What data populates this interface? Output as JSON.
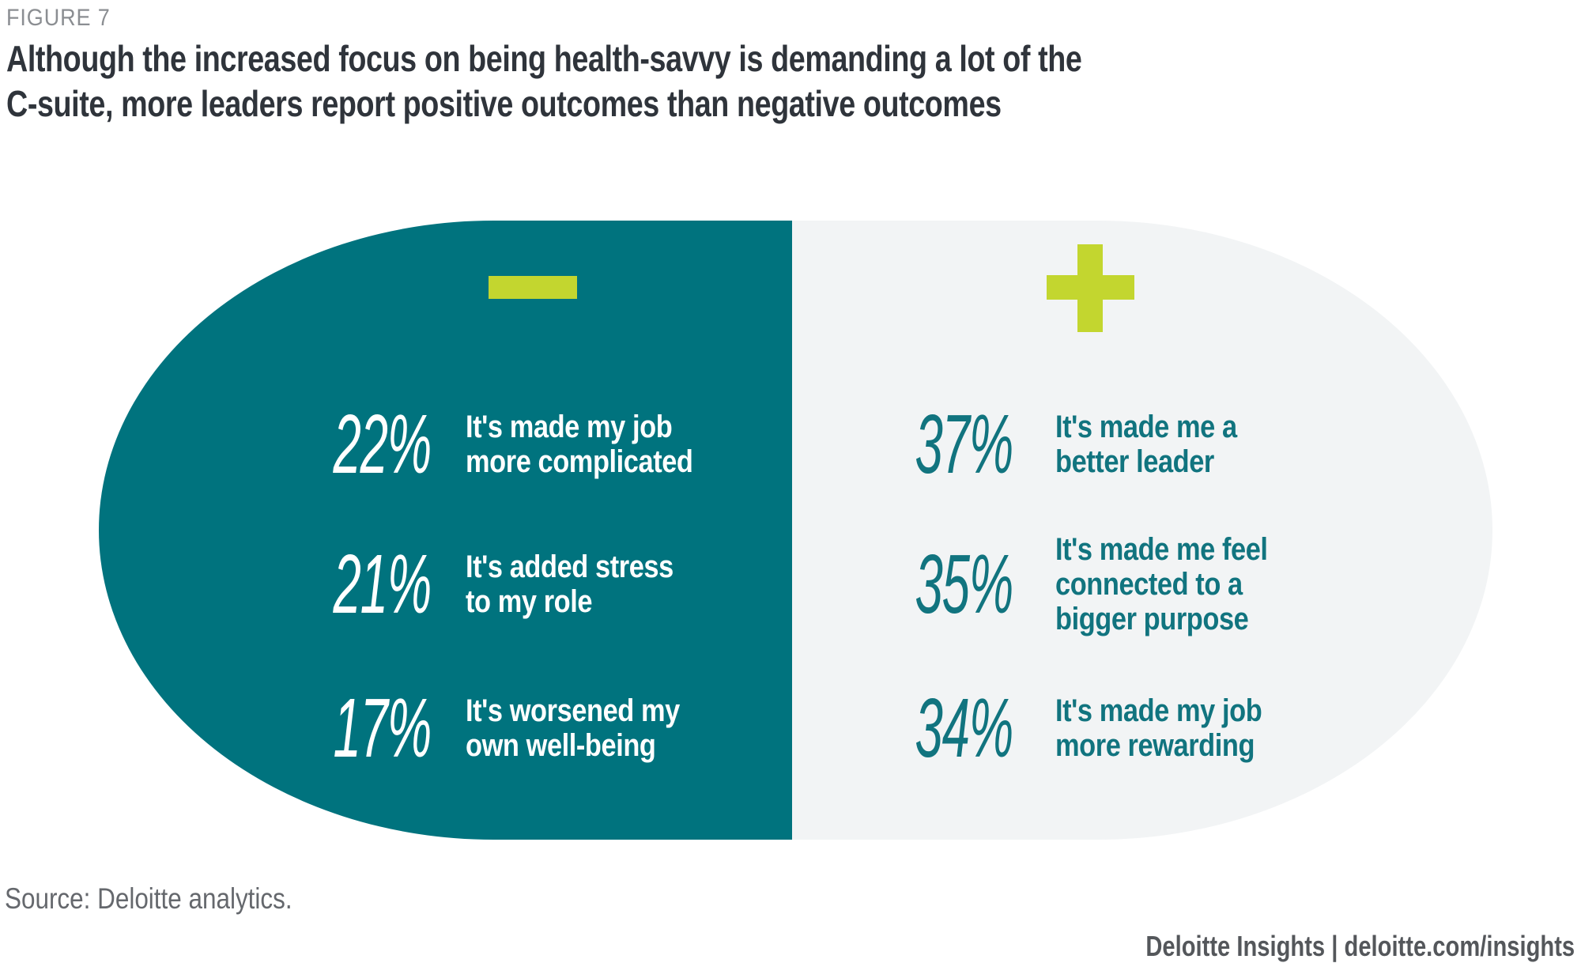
{
  "figure_label": "FIGURE 7",
  "title": "Although the increased focus on being health-savvy is demanding a lot of the\nC-suite, more leaders report positive outcomes than negative outcomes",
  "source": "Source: Deloitte analytics.",
  "footer": "Deloitte Insights | deloitte.com/insights",
  "colors": {
    "teal": "#00737E",
    "teal_text": "#11747F",
    "lime_accent": "#C3D62F",
    "panel_gray": "#F2F4F5",
    "title_text": "#2F343B",
    "muted_text": "#65686D"
  },
  "negative": {
    "icon": "minus-icon",
    "items": [
      {
        "value": "22%",
        "label": "It's made my job\nmore complicated"
      },
      {
        "value": "21%",
        "label": "It's added stress\nto my role"
      },
      {
        "value": "17%",
        "label": "It's worsened my\nown well-being"
      }
    ]
  },
  "positive": {
    "icon": "plus-icon",
    "items": [
      {
        "value": "37%",
        "label": "It's made me a\nbetter leader"
      },
      {
        "value": "35%",
        "label": "It's made me feel\nconnected to a\nbigger purpose"
      },
      {
        "value": "34%",
        "label": "It's made my job\nmore rewarding"
      }
    ]
  },
  "chart_data": {
    "type": "bar",
    "title": "Although the increased focus on being health-savvy is demanding a lot of the C-suite, more leaders report positive outcomes than negative outcomes",
    "unit": "%",
    "series": [
      {
        "name": "Negative outcomes",
        "categories": [
          "It's made my job more complicated",
          "It's added stress to my role",
          "It's worsened my own well-being"
        ],
        "values": [
          22,
          21,
          17
        ]
      },
      {
        "name": "Positive outcomes",
        "categories": [
          "It's made me a better leader",
          "It's made me feel connected to a bigger purpose",
          "It's made my job more rewarding"
        ],
        "values": [
          37,
          35,
          34
        ]
      }
    ],
    "source": "Source: Deloitte analytics."
  }
}
